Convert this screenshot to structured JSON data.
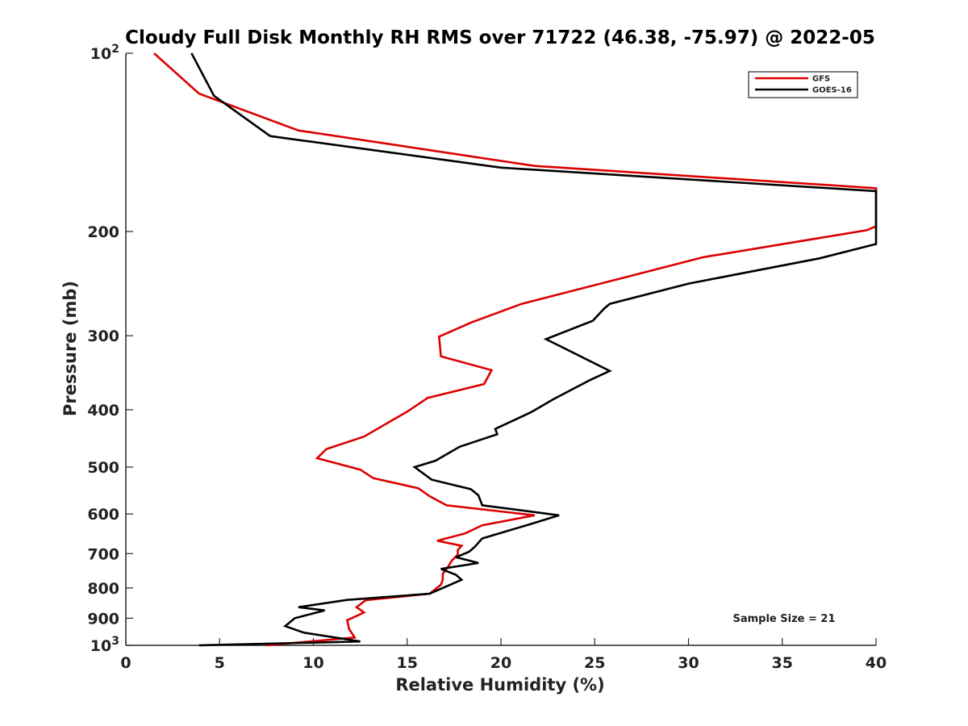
{
  "chart_data": {
    "type": "line",
    "title": "Cloudy Full Disk Monthly RH RMS over 71722 (46.38, -75.97) @ 2022-05",
    "xlabel": "Relative Humidity (%)",
    "ylabel": "Pressure (mb)",
    "xlim": [
      0,
      40
    ],
    "ylim": [
      100,
      1000
    ],
    "yscale": "log",
    "y_reversed": true,
    "xticks": [
      0,
      5,
      10,
      15,
      20,
      25,
      30,
      35,
      40
    ],
    "xtick_labels": [
      "0",
      "5",
      "10",
      "15",
      "20",
      "25",
      "30",
      "35",
      "40"
    ],
    "yticks": [
      {
        "value": 100,
        "base": "10",
        "exp": "2"
      },
      {
        "value": 200,
        "base": "200",
        "exp": ""
      },
      {
        "value": 300,
        "base": "300",
        "exp": ""
      },
      {
        "value": 400,
        "base": "400",
        "exp": ""
      },
      {
        "value": 500,
        "base": "500",
        "exp": ""
      },
      {
        "value": 600,
        "base": "600",
        "exp": ""
      },
      {
        "value": 700,
        "base": "700",
        "exp": ""
      },
      {
        "value": 800,
        "base": "800",
        "exp": ""
      },
      {
        "value": 900,
        "base": "900",
        "exp": ""
      },
      {
        "value": 1000,
        "base": "10",
        "exp": "3"
      }
    ],
    "legend_position": "top-right",
    "annotation": "Sample Size = 21",
    "series": [
      {
        "name": "GFS",
        "color": "#dd0000",
        "points": [
          [
            1.5,
            100
          ],
          [
            3.9,
            117
          ],
          [
            9.2,
            135
          ],
          [
            21.8,
            155
          ],
          [
            40,
            169
          ],
          [
            40,
            196
          ],
          [
            39.5,
            199
          ],
          [
            30.8,
            221
          ],
          [
            26.4,
            240
          ],
          [
            21.1,
            265
          ],
          [
            18.4,
            285
          ],
          [
            16.7,
            301
          ],
          [
            16.8,
            325
          ],
          [
            19.5,
            343
          ],
          [
            19.1,
            362
          ],
          [
            16.1,
            382
          ],
          [
            15.0,
            403
          ],
          [
            12.7,
            444
          ],
          [
            10.7,
            466
          ],
          [
            10.2,
            483
          ],
          [
            12.5,
            505
          ],
          [
            13.2,
            522
          ],
          [
            15.6,
            543
          ],
          [
            16.2,
            560
          ],
          [
            17.1,
            580
          ],
          [
            21.8,
            603
          ],
          [
            19.0,
            627
          ],
          [
            18.1,
            647
          ],
          [
            16.6,
            666
          ],
          [
            17.9,
            679
          ],
          [
            17.7,
            690
          ],
          [
            17.7,
            703
          ],
          [
            17.4,
            718
          ],
          [
            17.2,
            735
          ],
          [
            16.9,
            757
          ],
          [
            16.9,
            775
          ],
          [
            16.8,
            790
          ],
          [
            16.2,
            818
          ],
          [
            12.8,
            839
          ],
          [
            12.3,
            862
          ],
          [
            12.7,
            880
          ],
          [
            11.8,
            907
          ],
          [
            11.9,
            938
          ],
          [
            12.2,
            970
          ],
          [
            7.5,
            1000
          ]
        ]
      },
      {
        "name": "GOES-16",
        "color": "#000000",
        "points": [
          [
            3.5,
            100
          ],
          [
            4.7,
            118
          ],
          [
            7.7,
            138
          ],
          [
            20.0,
            156
          ],
          [
            40,
            171
          ],
          [
            40,
            210
          ],
          [
            37.0,
            222
          ],
          [
            30.0,
            245
          ],
          [
            25.8,
            265
          ],
          [
            25.5,
            270
          ],
          [
            24.9,
            283
          ],
          [
            22.4,
            304
          ],
          [
            25.8,
            344
          ],
          [
            24.7,
            357
          ],
          [
            22.8,
            384
          ],
          [
            21.6,
            404
          ],
          [
            19.7,
            431
          ],
          [
            19.8,
            440
          ],
          [
            17.8,
            462
          ],
          [
            16.5,
            488
          ],
          [
            15.4,
            500
          ],
          [
            16.3,
            525
          ],
          [
            18.4,
            545
          ],
          [
            18.8,
            558
          ],
          [
            19.0,
            580
          ],
          [
            23.1,
            603
          ],
          [
            21.5,
            625
          ],
          [
            19.0,
            660
          ],
          [
            18.6,
            682
          ],
          [
            18.3,
            695
          ],
          [
            17.6,
            710
          ],
          [
            18.8,
            726
          ],
          [
            16.8,
            743
          ],
          [
            17.6,
            760
          ],
          [
            17.9,
            775
          ],
          [
            16.9,
            800
          ],
          [
            16.2,
            818
          ],
          [
            11.8,
            838
          ],
          [
            9.2,
            862
          ],
          [
            10.6,
            873
          ],
          [
            9.0,
            900
          ],
          [
            8.5,
            928
          ],
          [
            9.5,
            952
          ],
          [
            12.5,
            985
          ],
          [
            3.9,
            1000
          ]
        ]
      }
    ]
  }
}
